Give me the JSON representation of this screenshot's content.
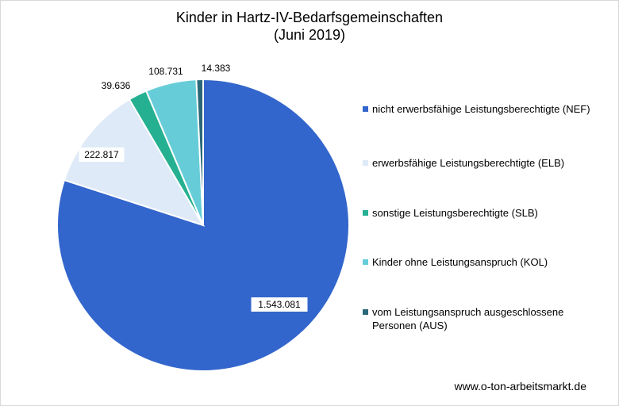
{
  "chart_data": {
    "type": "pie",
    "title": "Kinder in Hartz-IV-Bedarfsgemeinschaften",
    "subtitle": "(Juni 2019)",
    "legend_position": "right",
    "series": [
      {
        "name": "nicht erwerbsfähige Leistungsberechtigte (NEF)",
        "value": 1543081,
        "label": "1.543.081",
        "color": "#3366cc"
      },
      {
        "name": "erwerbsfähige Leistungsberechtigte (ELB)",
        "value": 222817,
        "label": "222.817",
        "color": "#deeaf7"
      },
      {
        "name": "sonstige Leistungsberechtigte (SLB)",
        "value": 39636,
        "label": "39.636",
        "color": "#25b092"
      },
      {
        "name": "Kinder ohne Leistungsanspruch (KOL)",
        "value": 108731,
        "label": "108.731",
        "color": "#66cdd8"
      },
      {
        "name": "vom Leistungsanspruch ausgeschlossene Personen (AUS)",
        "value": 14383,
        "label": "14.383",
        "color": "#2a6878"
      }
    ]
  },
  "footer": {
    "source": "www.o-ton-arbeitsmarkt.de"
  }
}
